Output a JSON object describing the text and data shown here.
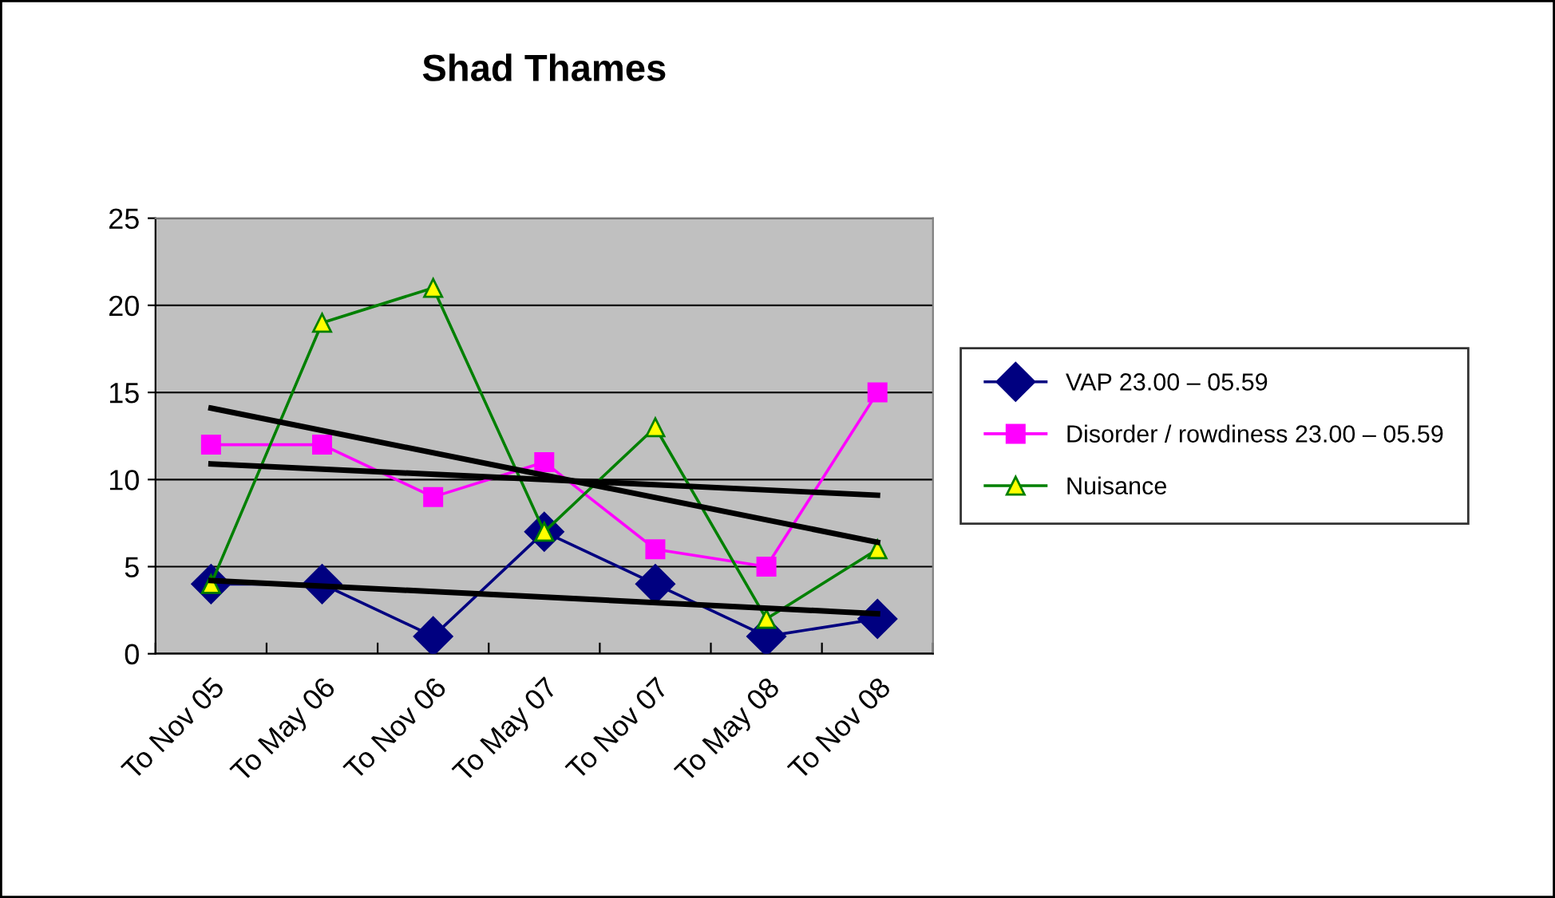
{
  "chart_data": {
    "type": "line",
    "title": "Shad Thames",
    "categories": [
      "To Nov 05",
      "To May 06",
      "To Nov 06",
      "To May 07",
      "To Nov 07",
      "To May 08",
      "To Nov 08"
    ],
    "series": [
      {
        "name": "VAP 23.00 – 05.59",
        "color": "#000080",
        "marker": "diamond",
        "values": [
          4,
          4,
          1,
          7,
          4,
          1,
          2
        ]
      },
      {
        "name": "Disorder / rowdiness 23.00 – 05.59",
        "color": "#ff00ff",
        "marker": "square",
        "values": [
          12,
          12,
          9,
          11,
          6,
          5,
          15
        ]
      },
      {
        "name": "Nuisance",
        "color": "#008000",
        "marker": "triangle",
        "values": [
          4,
          19,
          21,
          7,
          13,
          2,
          6
        ]
      },
      {
        "color": "#000000",
        "marker": "none",
        "x": [
          "To Nov 05",
          "To Nov 08"
        ],
        "values": [
          4.2,
          2.3
        ]
      },
      {
        "color": "#000000",
        "marker": "none",
        "x": [
          "To Nov 05",
          "To Nov 08"
        ],
        "values": [
          10.9,
          9.1
        ]
      },
      {
        "color": "#000000",
        "marker": "none",
        "x": [
          "To Nov 05",
          "To Nov 08"
        ],
        "values": [
          14.1,
          6.4
        ]
      }
    ],
    "ylim": [
      0,
      25
    ],
    "yticks": [
      0,
      5,
      10,
      15,
      20,
      25
    ],
    "grid": "y",
    "legend": "right",
    "line_style": "solid"
  }
}
